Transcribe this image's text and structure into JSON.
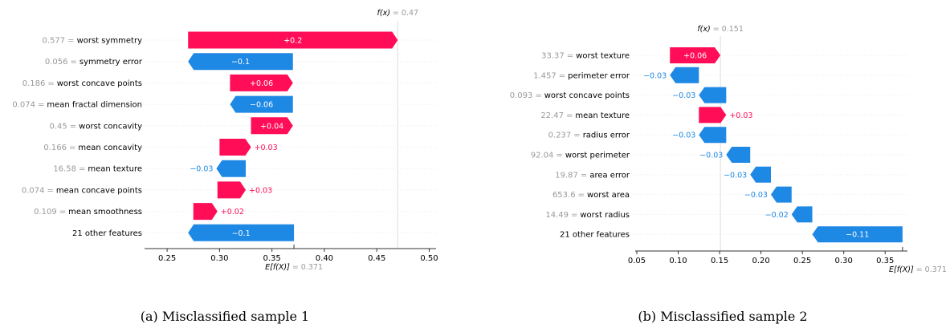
{
  "colors": {
    "positive": "#ff0d57",
    "negative": "#1e88e5",
    "muted": "#999999",
    "axis": "#333333"
  },
  "chart_data": [
    {
      "type": "waterfall",
      "caption": "(a)  Misclassified sample 1",
      "fx_label": "f(x)",
      "fx_value": "= 0.47",
      "fx": 0.47,
      "efx_label": "E[f(X)]",
      "efx_value": "= 0.371",
      "efx": 0.371,
      "xlim": [
        0.23,
        0.505
      ],
      "xticks": [
        0.25,
        0.3,
        0.35,
        0.4,
        0.45,
        0.5
      ],
      "xtick_labels": [
        "0.25",
        "0.30",
        "0.35",
        "0.40",
        "0.45",
        "0.50"
      ],
      "rows": [
        {
          "value": "0.577",
          "feature": "worst symmetry",
          "start": 0.27,
          "end": 0.47,
          "label": "+0.2"
        },
        {
          "value": "0.056",
          "feature": "symmetry error",
          "start": 0.37,
          "end": 0.27,
          "label": "−0.1"
        },
        {
          "value": "0.186",
          "feature": "worst concave points",
          "start": 0.31,
          "end": 0.37,
          "label": "+0.06"
        },
        {
          "value": "0.074",
          "feature": "mean fractal dimension",
          "start": 0.37,
          "end": 0.31,
          "label": "−0.06"
        },
        {
          "value": "0.45",
          "feature": "worst concavity",
          "start": 0.33,
          "end": 0.37,
          "label": "+0.04"
        },
        {
          "value": "0.166",
          "feature": "mean concavity",
          "start": 0.3,
          "end": 0.33,
          "label": "+0.03"
        },
        {
          "value": "16.58",
          "feature": "mean texture",
          "start": 0.325,
          "end": 0.297,
          "label": "−0.03"
        },
        {
          "value": "0.074",
          "feature": "mean concave points",
          "start": 0.298,
          "end": 0.325,
          "label": "+0.03"
        },
        {
          "value": "0.109",
          "feature": "mean smoothness",
          "start": 0.275,
          "end": 0.298,
          "label": "+0.02"
        },
        {
          "value": "",
          "feature": "21 other features",
          "start": 0.371,
          "end": 0.27,
          "label": "−0.1"
        }
      ]
    },
    {
      "type": "waterfall",
      "caption": "(b)  Misclassified sample 2",
      "fx_label": "f(x)",
      "fx_value": "= 0.151",
      "fx": 0.151,
      "efx_label": "E[f(X)]",
      "efx_value": "= 0.371",
      "efx": 0.371,
      "xlim": [
        0.05,
        0.375
      ],
      "xticks": [
        0.05,
        0.1,
        0.15,
        0.2,
        0.25,
        0.3,
        0.35
      ],
      "xtick_labels": [
        "0.05",
        "0.10",
        "0.15",
        "0.20",
        "0.25",
        "0.30",
        "0.35"
      ],
      "rows": [
        {
          "value": "33.37",
          "feature": "worst texture",
          "start": 0.09,
          "end": 0.151,
          "label": "+0.06"
        },
        {
          "value": "1.457",
          "feature": "perimeter error",
          "start": 0.125,
          "end": 0.09,
          "label": "−0.03"
        },
        {
          "value": "0.093",
          "feature": "worst concave points",
          "start": 0.158,
          "end": 0.125,
          "label": "−0.03"
        },
        {
          "value": "22.47",
          "feature": "mean texture",
          "start": 0.125,
          "end": 0.158,
          "label": "+0.03"
        },
        {
          "value": "0.237",
          "feature": "radius error",
          "start": 0.158,
          "end": 0.125,
          "label": "−0.03"
        },
        {
          "value": "92.04",
          "feature": "worst perimeter",
          "start": 0.187,
          "end": 0.158,
          "label": "−0.03"
        },
        {
          "value": "19.87",
          "feature": "area error",
          "start": 0.212,
          "end": 0.187,
          "label": "−0.03"
        },
        {
          "value": "653.6",
          "feature": "worst area",
          "start": 0.237,
          "end": 0.212,
          "label": "−0.03"
        },
        {
          "value": "14.49",
          "feature": "worst radius",
          "start": 0.262,
          "end": 0.237,
          "label": "−0.02"
        },
        {
          "value": "",
          "feature": "21 other features",
          "start": 0.371,
          "end": 0.262,
          "label": "−0.11"
        }
      ]
    }
  ]
}
